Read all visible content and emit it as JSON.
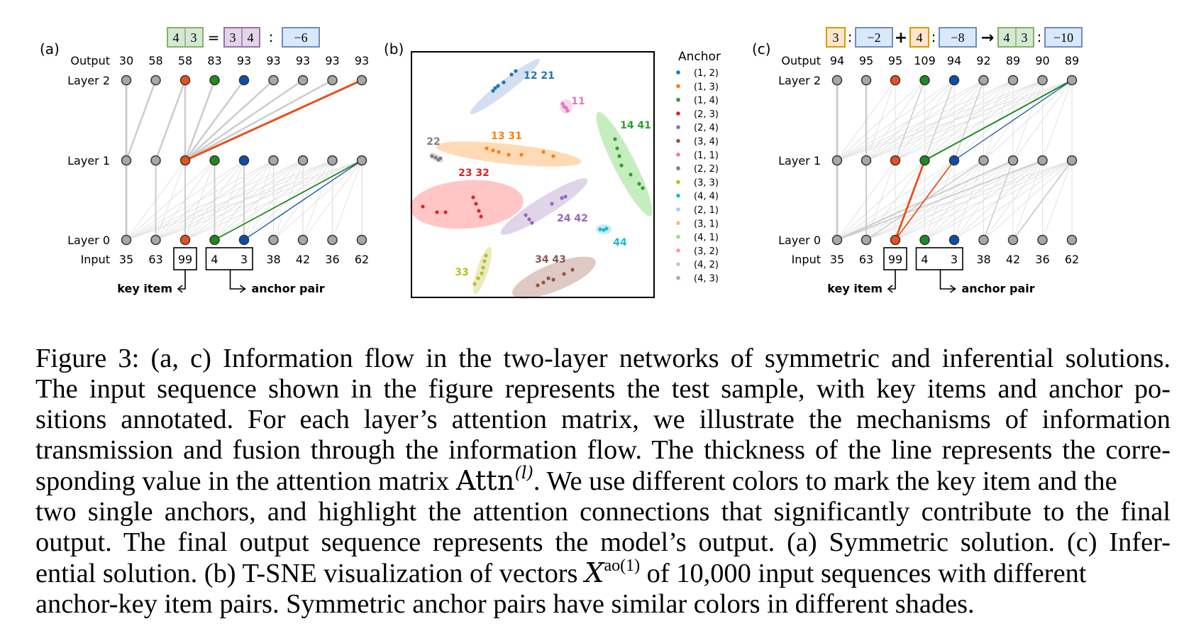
{
  "panel_a": {
    "label": "(a)",
    "equation": {
      "left_pair": [
        "4",
        "3"
      ],
      "equals": "=",
      "right_pair": [
        "3",
        "4"
      ],
      "colon": ":",
      "result": "−6"
    },
    "row_labels": {
      "output": "Output",
      "layer2": "Layer 2",
      "layer1": "Layer 1",
      "layer0": "Layer 0",
      "input": "Input"
    },
    "outputs": [
      "30",
      "58",
      "58",
      "83",
      "93",
      "93",
      "93",
      "93",
      "93"
    ],
    "inputs": [
      "35",
      "63",
      "99",
      "4",
      "3",
      "38",
      "42",
      "36",
      "62"
    ],
    "key_item_label": "key item",
    "anchor_pair_label": "anchor pair"
  },
  "panel_b": {
    "label": "(b)",
    "legend_title": "Anchor",
    "legend": [
      {
        "label": "(1, 2)",
        "color": "#1f77b4"
      },
      {
        "label": "(1, 3)",
        "color": "#ff7f0e"
      },
      {
        "label": "(1, 4)",
        "color": "#2ca02c"
      },
      {
        "label": "(2, 3)",
        "color": "#d62728"
      },
      {
        "label": "(2, 4)",
        "color": "#9467bd"
      },
      {
        "label": "(3, 4)",
        "color": "#8c564b"
      },
      {
        "label": "(1, 1)",
        "color": "#e377c2"
      },
      {
        "label": "(2, 2)",
        "color": "#7f7f7f"
      },
      {
        "label": "(3, 3)",
        "color": "#bcbd22"
      },
      {
        "label": "(4, 4)",
        "color": "#17becf"
      },
      {
        "label": "(2, 1)",
        "color": "#aec7e8"
      },
      {
        "label": "(3, 1)",
        "color": "#ffbb78"
      },
      {
        "label": "(4, 1)",
        "color": "#98df8a"
      },
      {
        "label": "(3, 2)",
        "color": "#ff9896"
      },
      {
        "label": "(4, 2)",
        "color": "#c7c7c7"
      },
      {
        "label": "(4, 3)",
        "color": "#c49c94"
      }
    ],
    "cluster_labels": [
      {
        "text": "12 21",
        "color": "#1f77b4"
      },
      {
        "text": "11",
        "color": "#e377c2"
      },
      {
        "text": "14 41",
        "color": "#2ca02c"
      },
      {
        "text": "22",
        "color": "#7f7f7f"
      },
      {
        "text": "13 31",
        "color": "#ff7f0e"
      },
      {
        "text": "23 32",
        "color": "#d62728"
      },
      {
        "text": "24 42",
        "color": "#9467bd"
      },
      {
        "text": "44",
        "color": "#17becf"
      },
      {
        "text": "33",
        "color": "#bcbd22"
      },
      {
        "text": "34 43",
        "color": "#8c564b"
      }
    ]
  },
  "panel_c": {
    "label": "(c)",
    "equation": {
      "a": "3",
      "colon1": ":",
      "a_val": "−2",
      "plus": "+",
      "b": "4",
      "colon2": ":",
      "b_val": "−8",
      "arrow": "→",
      "pair": [
        "4",
        "3"
      ],
      "colon3": ":",
      "result": "−10"
    },
    "row_labels": {
      "output": "Output",
      "layer2": "Layer 2",
      "layer1": "Layer 1",
      "layer0": "Layer 0",
      "input": "Input"
    },
    "outputs": [
      "94",
      "95",
      "95",
      "109",
      "94",
      "92",
      "89",
      "90",
      "89"
    ],
    "inputs": [
      "35",
      "63",
      "99",
      "4",
      "3",
      "38",
      "42",
      "36",
      "62"
    ],
    "key_item_label": "key item",
    "anchor_pair_label": "anchor pair"
  },
  "caption": {
    "l1": "Figure 3: (a, c) Information flow in the two-layer networks of symmetric and inferential solutions.",
    "l2": "The input sequence shown in the figure represents the test sample, with key items and anchor po-",
    "l3": "sitions annotated.  For each layer’s attention matrix, we illustrate the mechanisms of information",
    "l4": "transmission and fusion through the information flow. The thickness of the line represents the corre-",
    "l5a": "sponding value in the attention matrix ",
    "l5_attn": "Attn",
    "l5_sup": "(l)",
    "l5b": ". We use different colors to mark the key item and the",
    "l6": "two single anchors, and highlight the attention connections that significantly contribute to the final",
    "l7": "output. The final output sequence represents the model’s output. (a) Symmetric solution. (c) Infer-",
    "l8a": "ential solution. (b) T-SNE visualization of vectors ",
    "l8_x": "X",
    "l8_sup": "ao(1)",
    "l8b": " of 10,000 input sequences with different",
    "l9": "anchor-key item pairs. Symmetric anchor pairs have similar colors in different shades."
  },
  "colors": {
    "key": "#e8501c",
    "anchor1": "#1e8a1e",
    "anchor2": "#0b4fa6",
    "gray_node": "#a7a7a7",
    "eq_green": "#d5e8d4",
    "eq_purple": "#e1d5e7",
    "eq_blue": "#dae8fc",
    "eq_orange": "#ffe6cc"
  }
}
